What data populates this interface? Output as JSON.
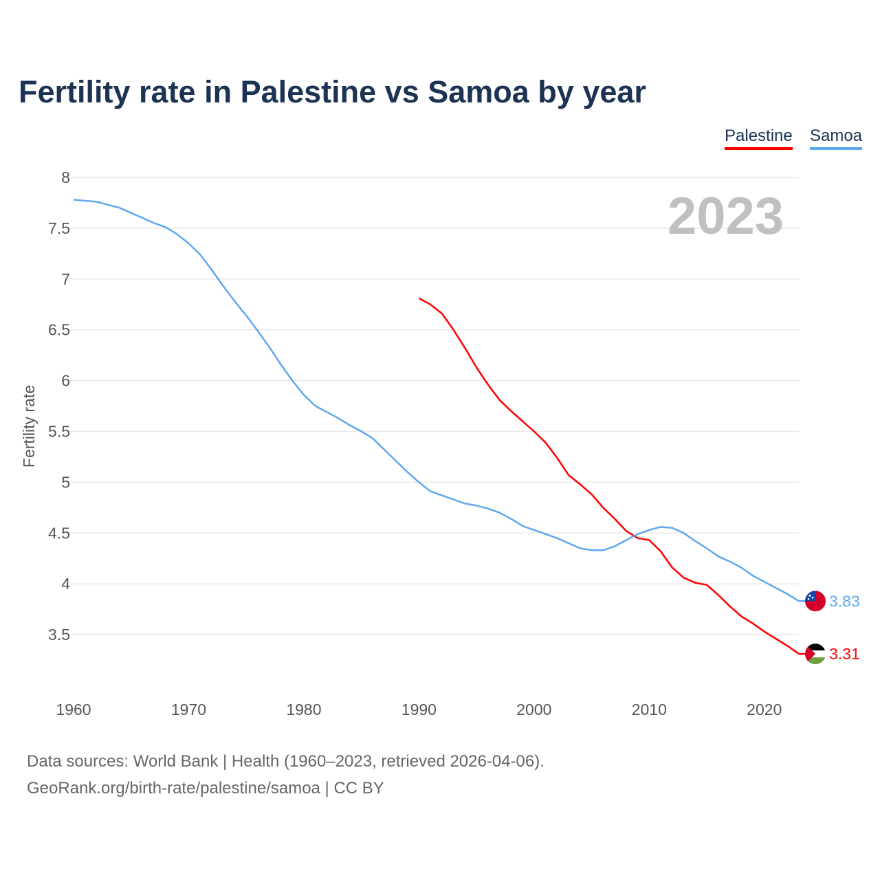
{
  "title": "Fertility rate in Palestine vs Samoa by year",
  "year_badge": "2023",
  "source_line1": "Data sources: World Bank | Health (1960–2023, retrieved 2026-04-06).",
  "source_line2": "GeoRank.org/birth-rate/palestine/samoa | CC BY",
  "chart_data": {
    "type": "line",
    "title": "Fertility rate in Palestine vs Samoa by year",
    "xlabel": "",
    "ylabel": "Fertility rate",
    "xlim": [
      1960,
      2023
    ],
    "ylim": [
      3,
      8
    ],
    "x_ticks": [
      "1960",
      "1970",
      "1980",
      "1990",
      "2000",
      "2010",
      "2020"
    ],
    "y_ticks": [
      "3.5",
      "4",
      "4.5",
      "5",
      "5.5",
      "6",
      "6.5",
      "7",
      "7.5",
      "8"
    ],
    "grid": true,
    "legend": "top-right",
    "series": [
      {
        "name": "Palestine",
        "color": "#ff0000",
        "flag": "palestine-flag",
        "end_label": "3.31",
        "start": 1990,
        "values": [
          6.81,
          6.75,
          6.66,
          6.5,
          6.32,
          6.13,
          5.96,
          5.81,
          5.7,
          5.6,
          5.5,
          5.39,
          5.24,
          5.07,
          4.98,
          4.88,
          4.75,
          4.64,
          4.52,
          4.45,
          4.43,
          4.32,
          4.16,
          4.06,
          4.01,
          3.99,
          3.89,
          3.78,
          3.68,
          3.61,
          3.53,
          3.46,
          3.39,
          3.31
        ]
      },
      {
        "name": "Samoa",
        "color": "#5ea8ee",
        "flag": "samoa-flag",
        "end_label": "3.83",
        "start": 1960,
        "values": [
          7.78,
          7.77,
          7.76,
          7.73,
          7.7,
          7.65,
          7.6,
          7.55,
          7.51,
          7.44,
          7.35,
          7.24,
          7.09,
          6.93,
          6.78,
          6.64,
          6.49,
          6.33,
          6.16,
          6.0,
          5.86,
          5.75,
          5.69,
          5.63,
          5.56,
          5.5,
          5.43,
          5.32,
          5.21,
          5.1,
          5.0,
          4.91,
          4.87,
          4.83,
          4.79,
          4.77,
          4.74,
          4.7,
          4.64,
          4.57,
          4.53,
          4.49,
          4.45,
          4.4,
          4.35,
          4.33,
          4.33,
          4.37,
          4.43,
          4.49,
          4.53,
          4.56,
          4.55,
          4.5,
          4.42,
          4.35,
          4.27,
          4.22,
          4.16,
          4.08,
          4.02,
          3.96,
          3.9,
          3.83
        ]
      }
    ]
  }
}
